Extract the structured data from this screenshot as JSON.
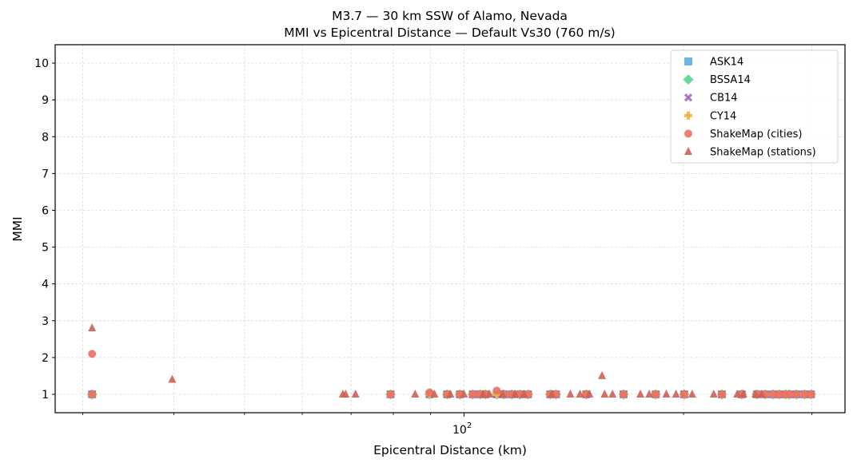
{
  "title": {
    "line1": "M3.7 — 30 km SSW of Alamo, Nevada",
    "line2": "MMI vs Epicentral Distance — Default Vs30 (760 m/s)"
  },
  "axes": {
    "xlabel": "Epicentral Distance (km)",
    "ylabel": "MMI",
    "x_major_tick_label_base": "10",
    "x_major_tick_label_exp": "2"
  },
  "legend": {
    "items": [
      {
        "label": "ASK14",
        "marker": "square",
        "color": "#5DADE2"
      },
      {
        "label": "BSSA14",
        "marker": "diamond",
        "color": "#58D68D"
      },
      {
        "label": "CB14",
        "marker": "x",
        "color": "#A569BD"
      },
      {
        "label": "CY14",
        "marker": "plus",
        "color": "#F5B041"
      },
      {
        "label": "ShakeMap (cities)",
        "marker": "circle",
        "color": "#EC7063"
      },
      {
        "label": "ShakeMap (stations)",
        "marker": "triangle",
        "color": "#CD6155"
      }
    ]
  },
  "chart_data": {
    "type": "scatter",
    "title": "M3.7 — 30 km SSW of Alamo, Nevada\nMMI vs Epicentral Distance — Default Vs30 (760 m/s)",
    "xlabel": "Epicentral Distance (km)",
    "ylabel": "MMI",
    "xscale": "log",
    "xlim": [
      27.5,
      333
    ],
    "ylim": [
      0.5,
      10.5
    ],
    "yticks": [
      1,
      2,
      3,
      4,
      5,
      6,
      7,
      8,
      9,
      10
    ],
    "xticks_major": [
      100
    ],
    "xticks_minor": [
      30,
      40,
      50,
      60,
      70,
      80,
      90,
      200,
      300
    ],
    "grid": true,
    "legend_position": "upper right",
    "series": [
      {
        "name": "ASK14",
        "marker": "square",
        "color": "#5DADE2",
        "x": [
          30.9,
          79.3,
          89.7,
          94.8,
          98.7,
          102.8,
          105.2,
          107.0,
          110.9,
          113.4,
          116.3,
          119.3,
          122.4,
          131.3,
          133.7,
          147.1,
          165.5,
          183.2,
          200.4,
          225.7,
          240.4,
          252.2,
          258.7,
          265.2,
          270.5,
          276.0,
          279.3,
          285.8,
          293.0,
          299.1
        ],
        "y": [
          1,
          1,
          1,
          1,
          1,
          1,
          1,
          1,
          1,
          1,
          1,
          1,
          1,
          1,
          1,
          1,
          1,
          1,
          1,
          1,
          1,
          1,
          1,
          1,
          1,
          1,
          1,
          1,
          1,
          1
        ]
      },
      {
        "name": "BSSA14",
        "marker": "diamond",
        "color": "#58D68D",
        "x": [
          30.9,
          79.3,
          89.7,
          94.8,
          98.7,
          102.8,
          105.2,
          107.0,
          110.9,
          113.4,
          116.3,
          119.3,
          122.4,
          131.3,
          133.7,
          147.1,
          165.5,
          183.2,
          200.4,
          225.7,
          240.4,
          252.2,
          258.7,
          265.2,
          270.5,
          276.0,
          279.3,
          285.8,
          293.0,
          299.1
        ],
        "y": [
          1,
          1,
          1,
          1,
          1,
          1,
          1,
          1,
          1,
          1,
          1,
          1,
          1,
          1,
          1,
          1,
          1,
          1,
          1,
          1,
          1,
          1,
          1,
          1,
          1,
          1,
          1,
          1,
          1,
          1
        ]
      },
      {
        "name": "CB14",
        "marker": "x",
        "color": "#A569BD",
        "x": [
          30.9,
          79.3,
          89.7,
          94.8,
          98.7,
          102.8,
          105.2,
          107.0,
          110.9,
          113.4,
          116.3,
          119.3,
          122.4,
          131.3,
          133.7,
          147.1,
          165.5,
          183.2,
          200.4,
          225.7,
          240.4,
          252.2,
          258.7,
          265.2,
          270.5,
          276.0,
          279.3,
          285.8,
          293.0,
          299.1
        ],
        "y": [
          1,
          1,
          1,
          1,
          1,
          1,
          1,
          1,
          1,
          1,
          1,
          1,
          1,
          1,
          1,
          1,
          1,
          1,
          1,
          1,
          1,
          1,
          1,
          1,
          1,
          1,
          1,
          1,
          1,
          1
        ]
      },
      {
        "name": "CY14",
        "marker": "plus",
        "color": "#F5B041",
        "x": [
          30.9,
          79.3,
          89.7,
          94.8,
          98.7,
          102.8,
          105.2,
          107.0,
          110.9,
          113.4,
          116.3,
          119.3,
          122.4,
          131.3,
          133.7,
          147.1,
          165.5,
          183.2,
          200.4,
          225.7,
          240.4,
          252.2,
          258.7,
          265.2,
          270.5,
          276.0,
          279.3,
          285.8,
          293.0,
          299.1
        ],
        "y": [
          1,
          1,
          1,
          1,
          1,
          1,
          1,
          1,
          1,
          1,
          1,
          1,
          1,
          1,
          1,
          1,
          1,
          1,
          1,
          1,
          1,
          1,
          1,
          1,
          1,
          1,
          1,
          1,
          1,
          1
        ]
      },
      {
        "name": "ShakeMap (cities)",
        "marker": "circle",
        "color": "#EC7063",
        "x": [
          30.9,
          30.9,
          79.3,
          89.7,
          94.8,
          98.7,
          102.8,
          105.2,
          107.0,
          110.9,
          113.4,
          116.3,
          119.3,
          122.4,
          131.3,
          133.7,
          147.1,
          165.5,
          183.2,
          200.4,
          225.7,
          240.4,
          252.2,
          258.7,
          265.2,
          270.5,
          276.0,
          279.3,
          285.8,
          293.0,
          299.1
        ],
        "y": [
          2.1,
          1,
          1,
          1.05,
          1,
          1,
          1,
          1,
          1,
          1.1,
          1,
          1,
          1,
          1,
          1,
          1,
          1,
          1,
          1,
          1,
          1,
          1,
          1,
          1,
          1,
          1,
          1,
          1,
          1,
          1,
          1
        ]
      },
      {
        "name": "ShakeMap (stations)",
        "marker": "triangle",
        "color": "#CD6155",
        "x": [
          30.9,
          39.8,
          68.2,
          68.8,
          71.0,
          85.7,
          91.1,
          95.8,
          100.0,
          106.2,
          108.4,
          112.9,
          117.5,
          120.8,
          132.0,
          139.9,
          144.2,
          148.6,
          154.6,
          155.9,
          159.8,
          174.5,
          179.5,
          189.4,
          195.3,
          205.5,
          220.0,
          236.9,
          241.6,
          251.0,
          256.0
        ],
        "y": [
          2.8,
          1.4,
          1,
          1,
          1,
          1,
          1,
          1,
          1,
          1,
          1,
          1,
          1,
          1,
          1,
          1,
          1,
          1,
          1.5,
          1,
          1,
          1,
          1,
          1,
          1,
          1,
          1,
          1,
          1,
          1,
          1
        ]
      }
    ]
  }
}
